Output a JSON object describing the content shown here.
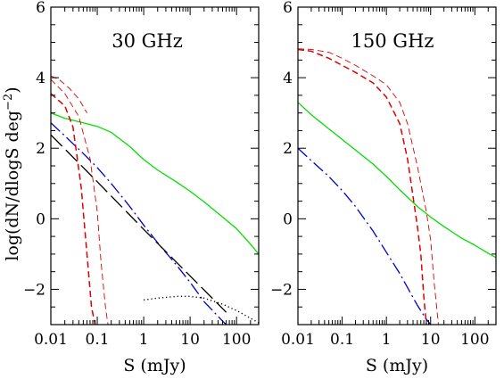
{
  "figure": {
    "ylabel": "log(dN/dlogS deg",
    "ylabel_sup": "−2",
    "ylabel_close": ")"
  },
  "colors": {
    "green": "#00e000",
    "blue": "#0000cc",
    "red": "#dd0000",
    "black": "#000000"
  },
  "chart_data": [
    {
      "type": "line",
      "title": "30 GHz",
      "xlabel": "S (mJy)",
      "ylabel": "log(dN/dlogS deg−2)",
      "xscale": "log",
      "xlim": [
        0.01,
        300
      ],
      "ylim": [
        -3,
        6
      ],
      "xticks": [
        0.01,
        0.1,
        1,
        10,
        100
      ],
      "xtick_labels": [
        "0.01",
        "0.1",
        "1",
        "10",
        "100"
      ],
      "yticks": [
        -2,
        0,
        2,
        4,
        6
      ],
      "ytick_labels": [
        "−2",
        "0",
        "2",
        "4",
        "6"
      ],
      "series": [
        {
          "style": "solid",
          "color": "green",
          "width": 1.3,
          "x": [
            0.01,
            0.02,
            0.05,
            0.1,
            0.2,
            0.5,
            1,
            2,
            5,
            10,
            20,
            50,
            100,
            200,
            300
          ],
          "y": [
            3.0,
            2.85,
            2.72,
            2.62,
            2.45,
            2.05,
            1.68,
            1.38,
            1.05,
            0.78,
            0.48,
            0.05,
            -0.28,
            -0.72,
            -1.0
          ]
        },
        {
          "style": "longdash-dot",
          "color": "blue",
          "width": 1.3,
          "x": [
            0.01,
            0.02,
            0.05,
            0.1,
            0.2,
            0.5,
            1,
            2,
            5,
            10,
            20,
            50,
            60
          ],
          "y": [
            2.72,
            2.35,
            1.85,
            1.45,
            1.0,
            0.35,
            -0.18,
            -0.68,
            -1.3,
            -1.8,
            -2.35,
            -2.9,
            -3.0
          ]
        },
        {
          "style": "longdash",
          "color": "black",
          "width": 1.3,
          "x": [
            0.01,
            0.1,
            1,
            10,
            60
          ],
          "y": [
            2.38,
            1.05,
            -0.3,
            -1.62,
            -2.65
          ]
        },
        {
          "style": "dotted",
          "color": "black",
          "width": 1.4,
          "x": [
            1,
            2,
            5,
            10,
            20,
            50,
            100,
            200,
            300
          ],
          "y": [
            -2.3,
            -2.25,
            -2.2,
            -2.2,
            -2.25,
            -2.42,
            -2.6,
            -2.82,
            -2.95
          ]
        },
        {
          "style": "dashed",
          "color": "red",
          "width": 1.5,
          "x": [
            0.01,
            0.02,
            0.03,
            0.045,
            0.06,
            0.075,
            0.09
          ],
          "y": [
            3.55,
            3.2,
            2.6,
            0.9,
            -1.0,
            -2.5,
            -3.0
          ]
        },
        {
          "style": "dashed",
          "color": "red",
          "width": 0.9,
          "x": [
            0.01,
            0.02,
            0.04,
            0.07,
            0.1,
            0.12,
            0.15,
            0.17
          ],
          "y": [
            3.95,
            3.55,
            2.9,
            1.7,
            0.2,
            -1.2,
            -2.5,
            -3.0
          ]
        },
        {
          "style": "dashed",
          "color": "red",
          "width": 0.9,
          "x": [
            0.01,
            0.015,
            0.025,
            0.04,
            0.06
          ],
          "y": [
            4.05,
            3.95,
            3.7,
            3.4,
            3.0
          ]
        }
      ]
    },
    {
      "type": "line",
      "title": "150 GHz",
      "xlabel": "S (mJy)",
      "ylabel": "",
      "xscale": "log",
      "xlim": [
        0.01,
        300
      ],
      "ylim": [
        -3,
        6
      ],
      "xticks": [
        0.01,
        0.1,
        1,
        10,
        100
      ],
      "xtick_labels": [
        "0.01",
        "0.1",
        "1",
        "10",
        "100"
      ],
      "yticks": [
        -2,
        0,
        2,
        4,
        6
      ],
      "ytick_labels": [
        "−2",
        "0",
        "2",
        "4",
        "6"
      ],
      "series": [
        {
          "style": "solid",
          "color": "green",
          "width": 1.3,
          "x": [
            0.01,
            0.02,
            0.05,
            0.1,
            0.2,
            0.5,
            1,
            2,
            5,
            10,
            20,
            50,
            100,
            200,
            300
          ],
          "y": [
            3.3,
            2.95,
            2.55,
            2.25,
            1.95,
            1.55,
            1.2,
            0.82,
            0.35,
            0.05,
            -0.22,
            -0.55,
            -0.75,
            -0.98,
            -1.1
          ]
        },
        {
          "style": "longdash-dot",
          "color": "blue",
          "width": 1.3,
          "x": [
            0.01,
            0.02,
            0.05,
            0.1,
            0.2,
            0.5,
            1,
            2,
            5,
            8,
            10
          ],
          "y": [
            2.0,
            1.65,
            1.2,
            0.8,
            0.35,
            -0.35,
            -0.95,
            -1.55,
            -2.45,
            -2.85,
            -3.0
          ]
        },
        {
          "style": "dashed",
          "color": "red",
          "width": 1.5,
          "x": [
            0.01,
            0.02,
            0.05,
            0.1,
            0.2,
            0.5,
            1,
            2,
            3,
            5,
            6,
            7,
            8
          ],
          "y": [
            4.8,
            4.75,
            4.55,
            4.35,
            4.15,
            3.85,
            3.45,
            2.7,
            1.7,
            -0.2,
            -1.0,
            -2.2,
            -3.0
          ]
        },
        {
          "style": "dashed",
          "color": "red",
          "width": 0.9,
          "x": [
            0.01,
            0.02,
            0.05,
            0.1,
            0.2,
            0.5,
            1,
            2,
            3,
            5,
            8,
            10,
            12,
            15
          ],
          "y": [
            4.82,
            4.8,
            4.72,
            4.55,
            4.35,
            4.05,
            3.8,
            3.3,
            2.7,
            1.5,
            0.2,
            -0.6,
            -1.8,
            -3.0
          ]
        }
      ]
    }
  ]
}
